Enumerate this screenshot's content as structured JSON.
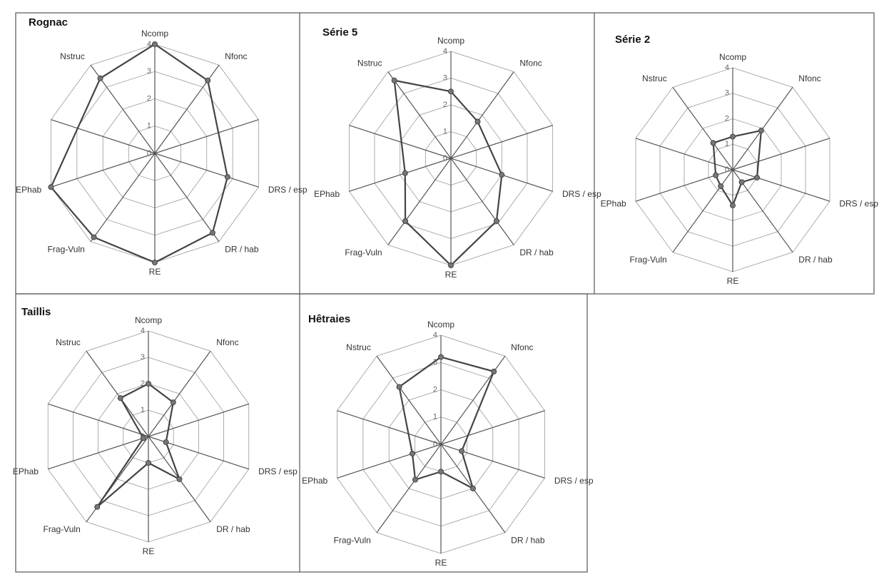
{
  "chart_data": [
    {
      "type": "radar",
      "title": "Rognac",
      "color": "#444444",
      "categories": [
        "Ncomp",
        "Nfonc",
        null,
        "DRS / esp",
        "DR / hab",
        "RE",
        "Frag-Vuln",
        "EPhab",
        null,
        "Nstruc"
      ],
      "values": [
        4,
        3.3,
        null,
        2.8,
        3.6,
        4,
        3.8,
        4,
        null,
        3.4
      ],
      "ylim": [
        0,
        4
      ],
      "yticks": [
        0,
        1,
        2,
        3,
        4
      ],
      "grid": true
    },
    {
      "type": "radar",
      "title": "Série 5",
      "color": "#444444",
      "categories": [
        "Ncomp",
        "Nfonc",
        null,
        "DRS / esp",
        "DR / hab",
        "RE",
        "Frag-Vuln",
        "EPhab",
        null,
        "Nstruc"
      ],
      "values": [
        2.5,
        1.7,
        null,
        2,
        2.9,
        4,
        2.9,
        1.8,
        null,
        3.6
      ],
      "ylim": [
        0,
        4
      ],
      "yticks": [
        0,
        1,
        2,
        3,
        4
      ],
      "grid": true
    },
    {
      "type": "radar",
      "title": "Série 2",
      "color": "#444444",
      "categories": [
        "Ncomp",
        "Nfonc",
        null,
        "DRS / esp",
        "DR / hab",
        "RE",
        "Frag-Vuln",
        "EPhab",
        null,
        "Nstruc"
      ],
      "values": [
        1.3,
        1.9,
        null,
        1,
        0.6,
        1.4,
        0.8,
        0.7,
        null,
        1.3
      ],
      "ylim": [
        0,
        4
      ],
      "yticks": [
        0,
        1,
        2,
        3,
        4
      ],
      "grid": true
    },
    {
      "type": "radar",
      "title": "Taillis",
      "color": "#444444",
      "categories": [
        "Ncomp",
        "Nfonc",
        null,
        "DRS / esp",
        "DR / hab",
        "RE",
        "Frag-Vuln",
        "EPhab",
        null,
        "Nstruc"
      ],
      "values": [
        2,
        1.6,
        null,
        0.7,
        2,
        1,
        3.3,
        0.2,
        null,
        1.8
      ],
      "ylim": [
        0,
        4
      ],
      "yticks": [
        0,
        1,
        2,
        3,
        4
      ],
      "grid": true
    },
    {
      "type": "radar",
      "title": "Hêtraies",
      "color": "#444444",
      "categories": [
        "Ncomp",
        "Nfonc",
        null,
        "DRS / esp",
        "DR / hab",
        "RE",
        "Frag-Vuln",
        "EPhab",
        null,
        "Nstruc"
      ],
      "values": [
        3.2,
        3.3,
        null,
        0.8,
        2,
        1,
        1.6,
        1.1,
        null,
        2.6
      ],
      "ylim": [
        0,
        4
      ],
      "yticks": [
        0,
        1,
        2,
        3,
        4
      ],
      "grid": true
    }
  ]
}
